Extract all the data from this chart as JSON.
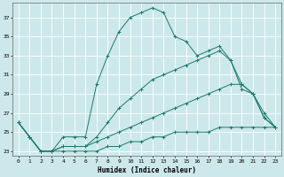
{
  "xlabel": "Humidex (Indice chaleur)",
  "bg_color": "#cde8ea",
  "grid_color": "#ffffff",
  "line_color": "#1a7a6e",
  "ylim": [
    22.5,
    38.5
  ],
  "xlim": [
    -0.5,
    23.5
  ],
  "yticks": [
    23,
    25,
    27,
    29,
    31,
    33,
    35,
    37
  ],
  "xticks": [
    0,
    1,
    2,
    3,
    4,
    5,
    6,
    7,
    8,
    9,
    10,
    11,
    12,
    13,
    14,
    15,
    16,
    17,
    18,
    19,
    20,
    21,
    22,
    23
  ],
  "series": [
    {
      "x": [
        0,
        1,
        2,
        3,
        4,
        5,
        6,
        7,
        8,
        9,
        10,
        11,
        12,
        13,
        14,
        15,
        16,
        17,
        18,
        19,
        20,
        21,
        22,
        23
      ],
      "y": [
        26.0,
        24.5,
        23.0,
        23.0,
        24.5,
        24.5,
        24.5,
        30.0,
        33.0,
        35.5,
        37.0,
        37.5,
        38.0,
        37.5,
        35.0,
        34.5,
        33.0,
        33.5,
        34.0,
        32.5,
        30.0,
        29.0,
        27.0,
        25.5
      ]
    },
    {
      "x": [
        0,
        1,
        2,
        3,
        4,
        5,
        6,
        7,
        8,
        9,
        10,
        11,
        12,
        13,
        14,
        15,
        16,
        17,
        18,
        19,
        20,
        21,
        22,
        23
      ],
      "y": [
        26.0,
        24.5,
        23.0,
        23.0,
        23.5,
        23.5,
        23.5,
        24.5,
        26.0,
        27.5,
        28.5,
        29.5,
        30.5,
        31.0,
        31.5,
        32.0,
        32.5,
        33.0,
        33.5,
        32.5,
        29.5,
        29.0,
        26.5,
        25.5
      ]
    },
    {
      "x": [
        0,
        1,
        2,
        3,
        4,
        5,
        6,
        7,
        8,
        9,
        10,
        11,
        12,
        13,
        14,
        15,
        16,
        17,
        18,
        19,
        20,
        21,
        22,
        23
      ],
      "y": [
        26.0,
        24.5,
        23.0,
        23.0,
        23.5,
        23.5,
        23.5,
        24.0,
        24.5,
        25.0,
        25.5,
        26.0,
        26.5,
        27.0,
        27.5,
        28.0,
        28.5,
        29.0,
        29.5,
        30.0,
        30.0,
        29.0,
        26.5,
        25.5
      ]
    },
    {
      "x": [
        0,
        1,
        2,
        3,
        4,
        5,
        6,
        7,
        8,
        9,
        10,
        11,
        12,
        13,
        14,
        15,
        16,
        17,
        18,
        19,
        20,
        21,
        22,
        23
      ],
      "y": [
        26.0,
        24.5,
        23.0,
        23.0,
        23.0,
        23.0,
        23.0,
        23.0,
        23.5,
        23.5,
        24.0,
        24.0,
        24.5,
        24.5,
        25.0,
        25.0,
        25.0,
        25.0,
        25.5,
        25.5,
        25.5,
        25.5,
        25.5,
        25.5
      ]
    }
  ]
}
